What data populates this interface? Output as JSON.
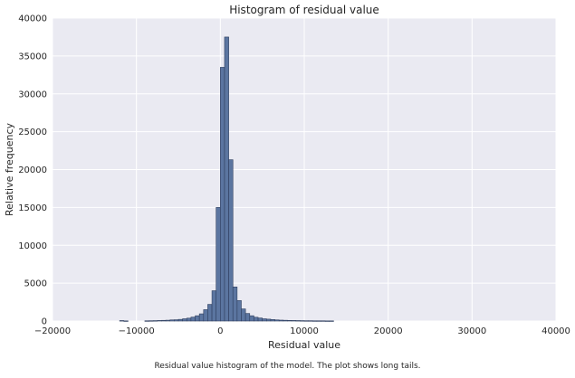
{
  "caption": "Residual value histogram of the model. The plot shows long tails.",
  "chart_data": {
    "type": "bar",
    "title": "Histogram of residual value",
    "xlabel": "Residual value",
    "ylabel": "Relative frequency",
    "xlim": [
      -20000,
      40000
    ],
    "ylim": [
      0,
      40000
    ],
    "xticks": [
      -20000,
      -10000,
      0,
      10000,
      20000,
      30000,
      40000
    ],
    "yticks": [
      0,
      5000,
      10000,
      15000,
      20000,
      25000,
      30000,
      35000,
      40000
    ],
    "grid": true,
    "background_color": "#eaeaf2",
    "bar_color": "#5b75a0",
    "bar_edge_color": "#2f3f5f",
    "bin_width": 500,
    "bin_starts": [
      -12000,
      -11500,
      -9000,
      -8500,
      -8000,
      -7500,
      -7000,
      -6500,
      -6000,
      -5500,
      -5000,
      -4500,
      -4000,
      -3500,
      -3000,
      -2500,
      -2000,
      -1500,
      -1000,
      -500,
      0,
      500,
      1000,
      1500,
      2000,
      2500,
      3000,
      3500,
      4000,
      4500,
      5000,
      5500,
      6000,
      6500,
      7000,
      7500,
      8000,
      8500,
      9000,
      9500,
      10000,
      10500,
      11000,
      11500,
      12000,
      12500,
      13000
    ],
    "values": [
      60,
      20,
      30,
      40,
      50,
      70,
      90,
      110,
      150,
      170,
      220,
      300,
      380,
      520,
      700,
      950,
      1500,
      2200,
      4000,
      15000,
      33500,
      37500,
      21300,
      4500,
      2700,
      1600,
      1000,
      700,
      500,
      400,
      300,
      250,
      200,
      150,
      120,
      100,
      80,
      70,
      60,
      50,
      40,
      40,
      30,
      30,
      30,
      20,
      20
    ]
  }
}
